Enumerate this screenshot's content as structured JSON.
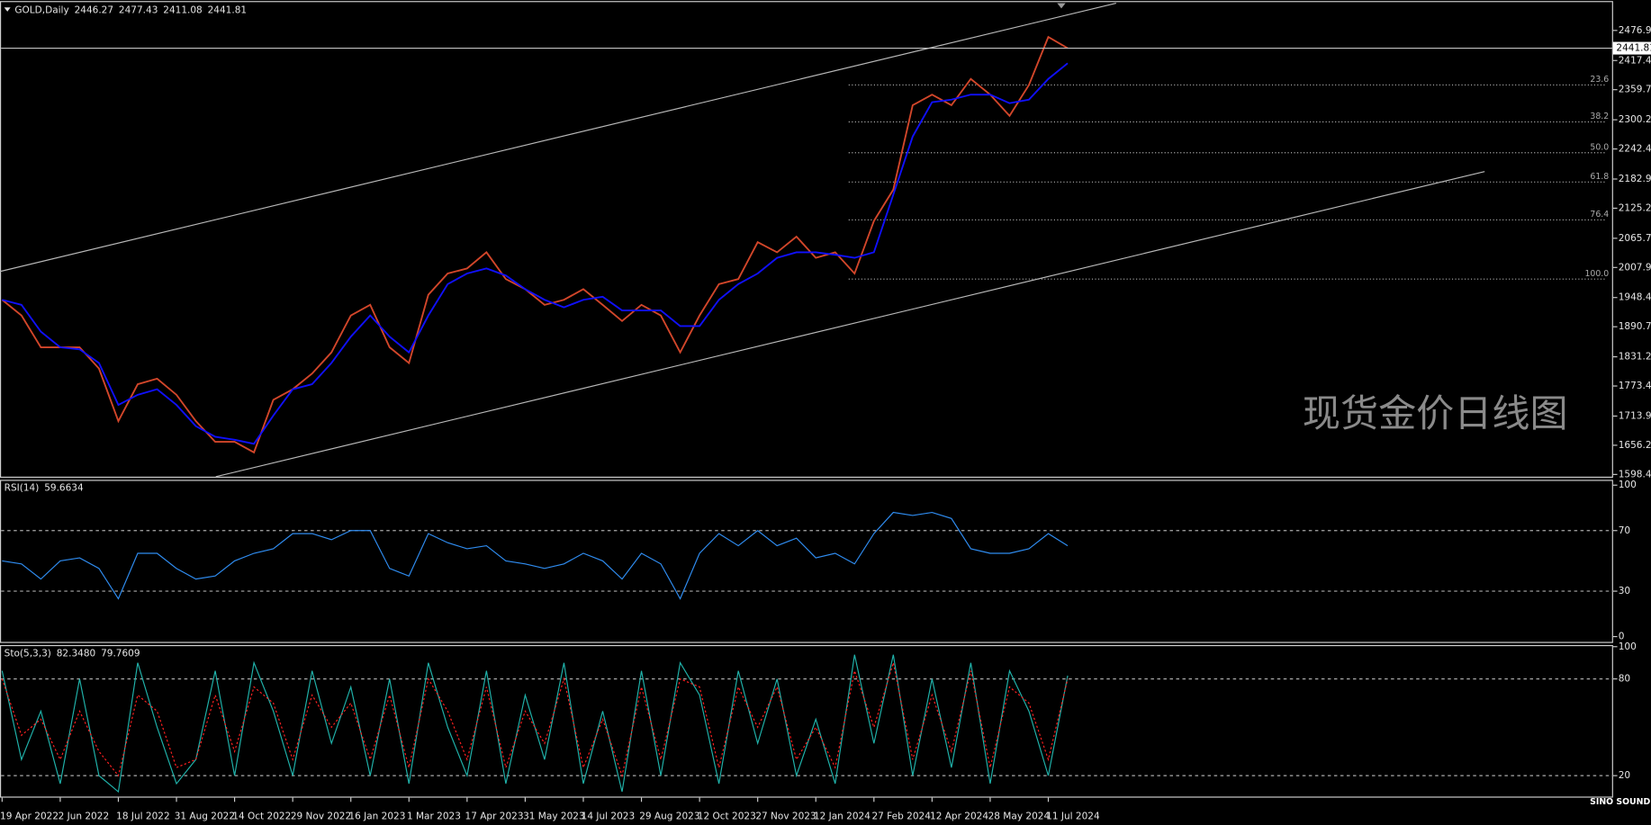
{
  "chart_data": [
    {
      "type": "line",
      "symbol": "GOLD,Daily",
      "ohlc": [
        2446.27,
        2477.43,
        2411.08,
        2441.81
      ],
      "watermark": "现货金价日线图",
      "logo": "SINO SOUND",
      "categories": [
        "19 Apr 2022",
        null,
        null,
        "2 Jun 2022",
        null,
        null,
        "18 Jul 2022",
        null,
        null,
        "31 Aug 2022",
        null,
        null,
        "14 Oct 2022",
        null,
        null,
        "29 Nov 2022",
        null,
        null,
        "16 Jan 2023",
        null,
        null,
        "1 Mar 2023",
        null,
        null,
        "17 Apr 2023",
        null,
        null,
        "31 May 2023",
        null,
        null,
        "14 Jul 2023",
        null,
        null,
        "29 Aug 2023",
        null,
        null,
        "12 Oct 2023",
        null,
        null,
        "27 Nov 2023",
        null,
        null,
        "12 Jan 2024",
        null,
        null,
        "27 Feb 2024",
        null,
        null,
        "12 Apr 2024",
        null,
        null,
        "28 May 2024",
        null,
        null,
        "11 Jul 2024",
        null
      ],
      "series": [
        {
          "name": "Close",
          "color": "#d2462a",
          "values": [
            1944,
            1913,
            1850,
            1850,
            1850,
            1808,
            1704,
            1777,
            1788,
            1756,
            1704,
            1663,
            1663,
            1642,
            1746,
            1767,
            1798,
            1840,
            1913,
            1934,
            1850,
            1819,
            1954,
            1996,
            2006,
            2038,
            1985,
            1965,
            1934,
            1944,
            1965,
            1934,
            1902,
            1934,
            1913,
            1840,
            1913,
            1975,
            1985,
            2058,
            2038,
            2069,
            2027,
            2038,
            1996,
            2100,
            2162,
            2329,
            2350,
            2329,
            2381,
            2350,
            2308,
            2369,
            2464,
            2441.81
          ]
        },
        {
          "name": "MA",
          "color": "#1010ff",
          "values": [
            1944,
            1934,
            1881,
            1850,
            1846,
            1819,
            1736,
            1756,
            1767,
            1736,
            1694,
            1673,
            1667,
            1659,
            1715,
            1767,
            1777,
            1819,
            1871,
            1913,
            1871,
            1840,
            1913,
            1975,
            1996,
            2006,
            1992,
            1965,
            1944,
            1929,
            1944,
            1950,
            1923,
            1923,
            1923,
            1892,
            1892,
            1944,
            1975,
            1996,
            2027,
            2038,
            2038,
            2033,
            2027,
            2038,
            2152,
            2267,
            2335,
            2340,
            2350,
            2350,
            2333,
            2340,
            2381,
            2412
          ]
        }
      ],
      "ylim": [
        1594,
        2533
      ],
      "yticks": [
        2476.95,
        2417.45,
        {
          "value": 2359.7,
          "label": "2359.70"
        },
        {
          "value": 2300.2,
          "label": "2300.20"
        },
        2242.45,
        2182.95,
        {
          "value": 2125.2,
          "label": "2125.20"
        },
        {
          "value": 2065.7,
          "label": "2065.70"
        },
        2007.95,
        1948.45,
        {
          "value": 1890.7,
          "label": "1890.70"
        },
        {
          "value": 1831.2,
          "label": "1831.20"
        },
        1773.45,
        1713.95,
        {
          "value": 1656.2,
          "label": "1656.20"
        },
        1598.45
      ],
      "levels": [
        {
          "name": "23.6",
          "value": 2369
        },
        {
          "name": "38.2",
          "value": 2296
        },
        {
          "name": "50.0",
          "value": 2235
        },
        {
          "name": "61.8",
          "value": 2177
        },
        {
          "name": "76.4",
          "value": 2102
        },
        {
          "name": "100.0",
          "value": 1985
        }
      ]
    },
    {
      "type": "line",
      "title": "RSI(14)",
      "readings": [
        59.6634
      ],
      "series": [
        {
          "name": "RSI",
          "color": "#2f8cf0",
          "values": [
            50,
            48,
            38,
            50,
            52,
            45,
            25,
            55,
            55,
            45,
            38,
            40,
            50,
            55,
            58,
            68,
            68,
            64,
            70,
            70,
            45,
            40,
            68,
            62,
            58,
            60,
            50,
            48,
            45,
            48,
            55,
            50,
            38,
            55,
            48,
            25,
            55,
            68,
            60,
            70,
            60,
            65,
            52,
            55,
            48,
            68,
            82,
            80,
            82,
            78,
            58,
            55,
            55,
            58,
            68,
            60
          ]
        }
      ],
      "ylim": [
        -3.5,
        103.5
      ],
      "yticks": [
        100,
        70,
        30,
        0
      ],
      "levels": [
        70,
        30
      ]
    },
    {
      "type": "line",
      "title": "Sto(5,3,3)",
      "readings": [
        {
          "value": 82.348,
          "label": "82.3480"
        },
        79.7609
      ],
      "series": [
        {
          "name": "Main",
          "color": "#20b2aa",
          "values": [
            85,
            30,
            60,
            15,
            80,
            20,
            10,
            90,
            50,
            15,
            30,
            85,
            20,
            90,
            60,
            20,
            85,
            40,
            75,
            20,
            80,
            15,
            90,
            50,
            20,
            85,
            15,
            70,
            30,
            90,
            15,
            60,
            10,
            85,
            20,
            90,
            70,
            15,
            85,
            40,
            80,
            20,
            55,
            15,
            95,
            40,
            95,
            20,
            80,
            25,
            90,
            15,
            85,
            60,
            20,
            82
          ]
        },
        {
          "name": "Signal",
          "color": "#ff2020",
          "dash": true,
          "values": [
            80,
            45,
            55,
            30,
            60,
            35,
            20,
            70,
            60,
            25,
            30,
            70,
            35,
            75,
            65,
            30,
            70,
            50,
            65,
            30,
            70,
            25,
            80,
            60,
            30,
            75,
            25,
            60,
            40,
            80,
            25,
            55,
            20,
            75,
            30,
            80,
            75,
            25,
            75,
            50,
            75,
            30,
            50,
            25,
            85,
            50,
            90,
            30,
            70,
            35,
            85,
            25,
            75,
            65,
            30,
            80
          ]
        }
      ],
      "ylim": [
        7,
        101
      ],
      "yticks": [
        100,
        80,
        20
      ],
      "levels": [
        80,
        20
      ]
    }
  ]
}
